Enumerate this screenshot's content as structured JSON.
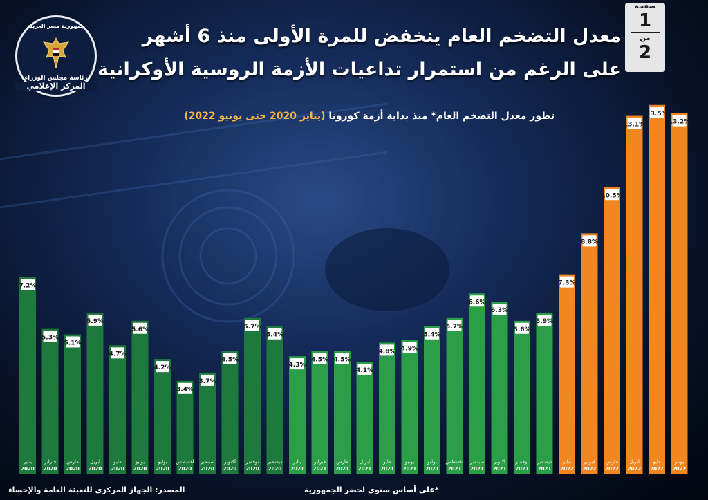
{
  "header": {
    "title_line1": "معدل التضخم العام ينخفض للمرة الأولى منذ 6 أشهر",
    "title_line2": "على الرغم من استمرار تداعيات الأزمة الروسية الأوكرانية",
    "subtitle_main": "تطور معدل التضخم العام* منذ بداية أزمة كورونا",
    "subtitle_range": "(يناير 2020 حتى يونيو 2022)"
  },
  "page_box": {
    "label_page": "صفحة",
    "page": "1",
    "label_of": "من",
    "total": "2"
  },
  "logo": {
    "top_text": "جمهورية مصر العربية",
    "line1": "رئاسة مجلس الوزراء",
    "line2": "المركز الإعلامي"
  },
  "footer": {
    "source": "المصدر: الجهاز المركزي للتعبئة العامة والإحصاء",
    "footnote": "*على أساس سنوي لحضر الجمهورية"
  },
  "colors": {
    "green_bar": "#1e7a3c",
    "green_light": "#2b9e48",
    "orange_bar": "#f2871f",
    "label_box": "#ffffff"
  },
  "chart_data": {
    "type": "bar",
    "title": "تطور معدل التضخم العام* منذ بداية أزمة كورونا (يناير 2020 حتى يونيو 2022)",
    "categories": [
      {
        "month": "يناير",
        "year": "2020"
      },
      {
        "month": "فبراير",
        "year": "2020"
      },
      {
        "month": "مارس",
        "year": "2020"
      },
      {
        "month": "أبريل",
        "year": "2020"
      },
      {
        "month": "مايو",
        "year": "2020"
      },
      {
        "month": "يونيو",
        "year": "2020"
      },
      {
        "month": "يوليو",
        "year": "2020"
      },
      {
        "month": "أغسطس",
        "year": "2020"
      },
      {
        "month": "سبتمبر",
        "year": "2020"
      },
      {
        "month": "أكتوبر",
        "year": "2020"
      },
      {
        "month": "نوفمبر",
        "year": "2020"
      },
      {
        "month": "ديسمبر",
        "year": "2020"
      },
      {
        "month": "يناير",
        "year": "2021"
      },
      {
        "month": "فبراير",
        "year": "2021"
      },
      {
        "month": "مارس",
        "year": "2021"
      },
      {
        "month": "أبريل",
        "year": "2021"
      },
      {
        "month": "مايو",
        "year": "2021"
      },
      {
        "month": "يونيو",
        "year": "2021"
      },
      {
        "month": "يوليو",
        "year": "2021"
      },
      {
        "month": "أغسطس",
        "year": "2021"
      },
      {
        "month": "سبتمبر",
        "year": "2021"
      },
      {
        "month": "أكتوبر",
        "year": "2021"
      },
      {
        "month": "نوفمبر",
        "year": "2021"
      },
      {
        "month": "ديسمبر",
        "year": "2021"
      },
      {
        "month": "يناير",
        "year": "2022"
      },
      {
        "month": "فبراير",
        "year": "2022"
      },
      {
        "month": "مارس",
        "year": "2022"
      },
      {
        "month": "أبريل",
        "year": "2022"
      },
      {
        "month": "مايو",
        "year": "2022"
      },
      {
        "month": "يونيو",
        "year": "2022"
      }
    ],
    "values": [
      7.2,
      5.3,
      5.1,
      5.9,
      4.7,
      5.6,
      4.2,
      3.4,
      3.7,
      4.5,
      5.7,
      5.4,
      4.3,
      4.5,
      4.5,
      4.1,
      4.8,
      4.9,
      5.4,
      5.7,
      6.6,
      6.3,
      5.6,
      5.9,
      7.3,
      8.8,
      10.5,
      13.1,
      13.5,
      13.2
    ],
    "labels": [
      "7.2%",
      "5.3%",
      "5.1%",
      "5.9%",
      "4.7%",
      "5.6%",
      "4.2%",
      "3.4%",
      "3.7%",
      "4.5%",
      "5.7%",
      "5.4%",
      "4.3%",
      "4.5%",
      "4.5%",
      "4.1%",
      "4.8%",
      "4.9%",
      "5.4%",
      "5.7%",
      "6.6%",
      "6.3%",
      "5.6%",
      "5.9%",
      "7.3%",
      "8.8%",
      "10.5%",
      "13.1%",
      "13.5%",
      "13.2%"
    ],
    "series_colors": [
      "#1e7a3c",
      "#2b9e48",
      "#f2871f"
    ],
    "ylim": [
      0,
      14
    ],
    "grid": false,
    "legend": "none"
  }
}
